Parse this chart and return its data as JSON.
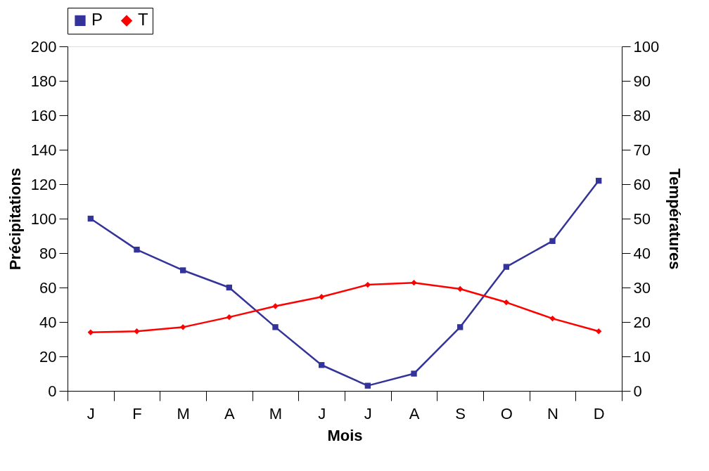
{
  "chart_data": {
    "type": "line",
    "xlabel": "Mois",
    "ylabel": "Précipitations",
    "y2label": "Températures",
    "categories": [
      "J",
      "F",
      "M",
      "A",
      "M",
      "J",
      "J",
      "A",
      "S",
      "O",
      "N",
      "D"
    ],
    "series": [
      {
        "name": "P",
        "color": "#333399",
        "marker": "square",
        "values": [
          100,
          82,
          70,
          60,
          37,
          15,
          3,
          10,
          37,
          72,
          87,
          122
        ]
      },
      {
        "name": "T",
        "color": "#ff0000",
        "marker": "diamond",
        "axis": "y2",
        "values": [
          17,
          17.3,
          18.5,
          21.4,
          24.6,
          27.3,
          30.8,
          31.4,
          29.6,
          25.7,
          21,
          17.3
        ]
      }
    ],
    "ylim": [
      0,
      200
    ],
    "yticks": [
      0,
      20,
      40,
      60,
      80,
      100,
      120,
      140,
      160,
      180,
      200
    ],
    "y2lim": [
      0,
      100
    ],
    "y2ticks": [
      0,
      10,
      20,
      30,
      40,
      50,
      60,
      70,
      80,
      90,
      100
    ],
    "grid": false,
    "legend": "top",
    "line_style": "solid"
  }
}
